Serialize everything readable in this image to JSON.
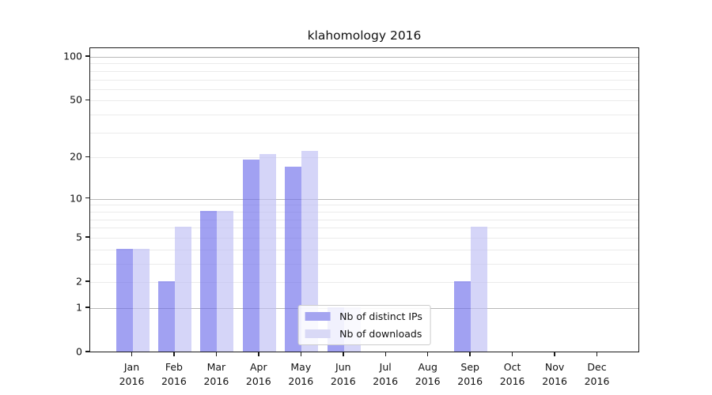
{
  "chart_data": {
    "type": "bar",
    "title": "klahomology 2016",
    "categories": [
      "Jan 2016",
      "Feb 2016",
      "Mar 2016",
      "Apr 2016",
      "May 2016",
      "Jun 2016",
      "Jul 2016",
      "Aug 2016",
      "Sep 2016",
      "Oct 2016",
      "Nov 2016",
      "Dec 2016"
    ],
    "month_labels": [
      "Jan",
      "Feb",
      "Mar",
      "Apr",
      "May",
      "Jun",
      "Jul",
      "Aug",
      "Sep",
      "Oct",
      "Nov",
      "Dec"
    ],
    "year_label": "2016",
    "series": [
      {
        "name": "Nb of distinct IPs",
        "color": "rgba(110,110,235,0.65)",
        "solid_color": "#a4a4f0",
        "values": [
          4,
          2,
          8,
          19,
          17,
          1,
          0,
          0,
          2,
          0,
          0,
          0
        ]
      },
      {
        "name": "Nb of downloads",
        "color": "rgba(190,190,245,0.65)",
        "solid_color": "#d9d9f6",
        "values": [
          4,
          6,
          8,
          21,
          22,
          1,
          0,
          0,
          6,
          0,
          0,
          0
        ]
      }
    ],
    "y_scale": "log10(1+x)",
    "y_ticks": [
      0,
      1,
      2,
      5,
      10,
      20,
      50,
      100
    ],
    "y_gridlines_major": [
      1,
      10,
      100
    ],
    "y_gridlines_minor": [
      2,
      3,
      4,
      5,
      6,
      7,
      8,
      9,
      20,
      30,
      40,
      50,
      60,
      70,
      80,
      90
    ],
    "ylim": [
      0,
      114
    ],
    "grid": true,
    "legend_position": "lower center",
    "legend": [
      "Nb of distinct IPs",
      "Nb of downloads"
    ]
  }
}
